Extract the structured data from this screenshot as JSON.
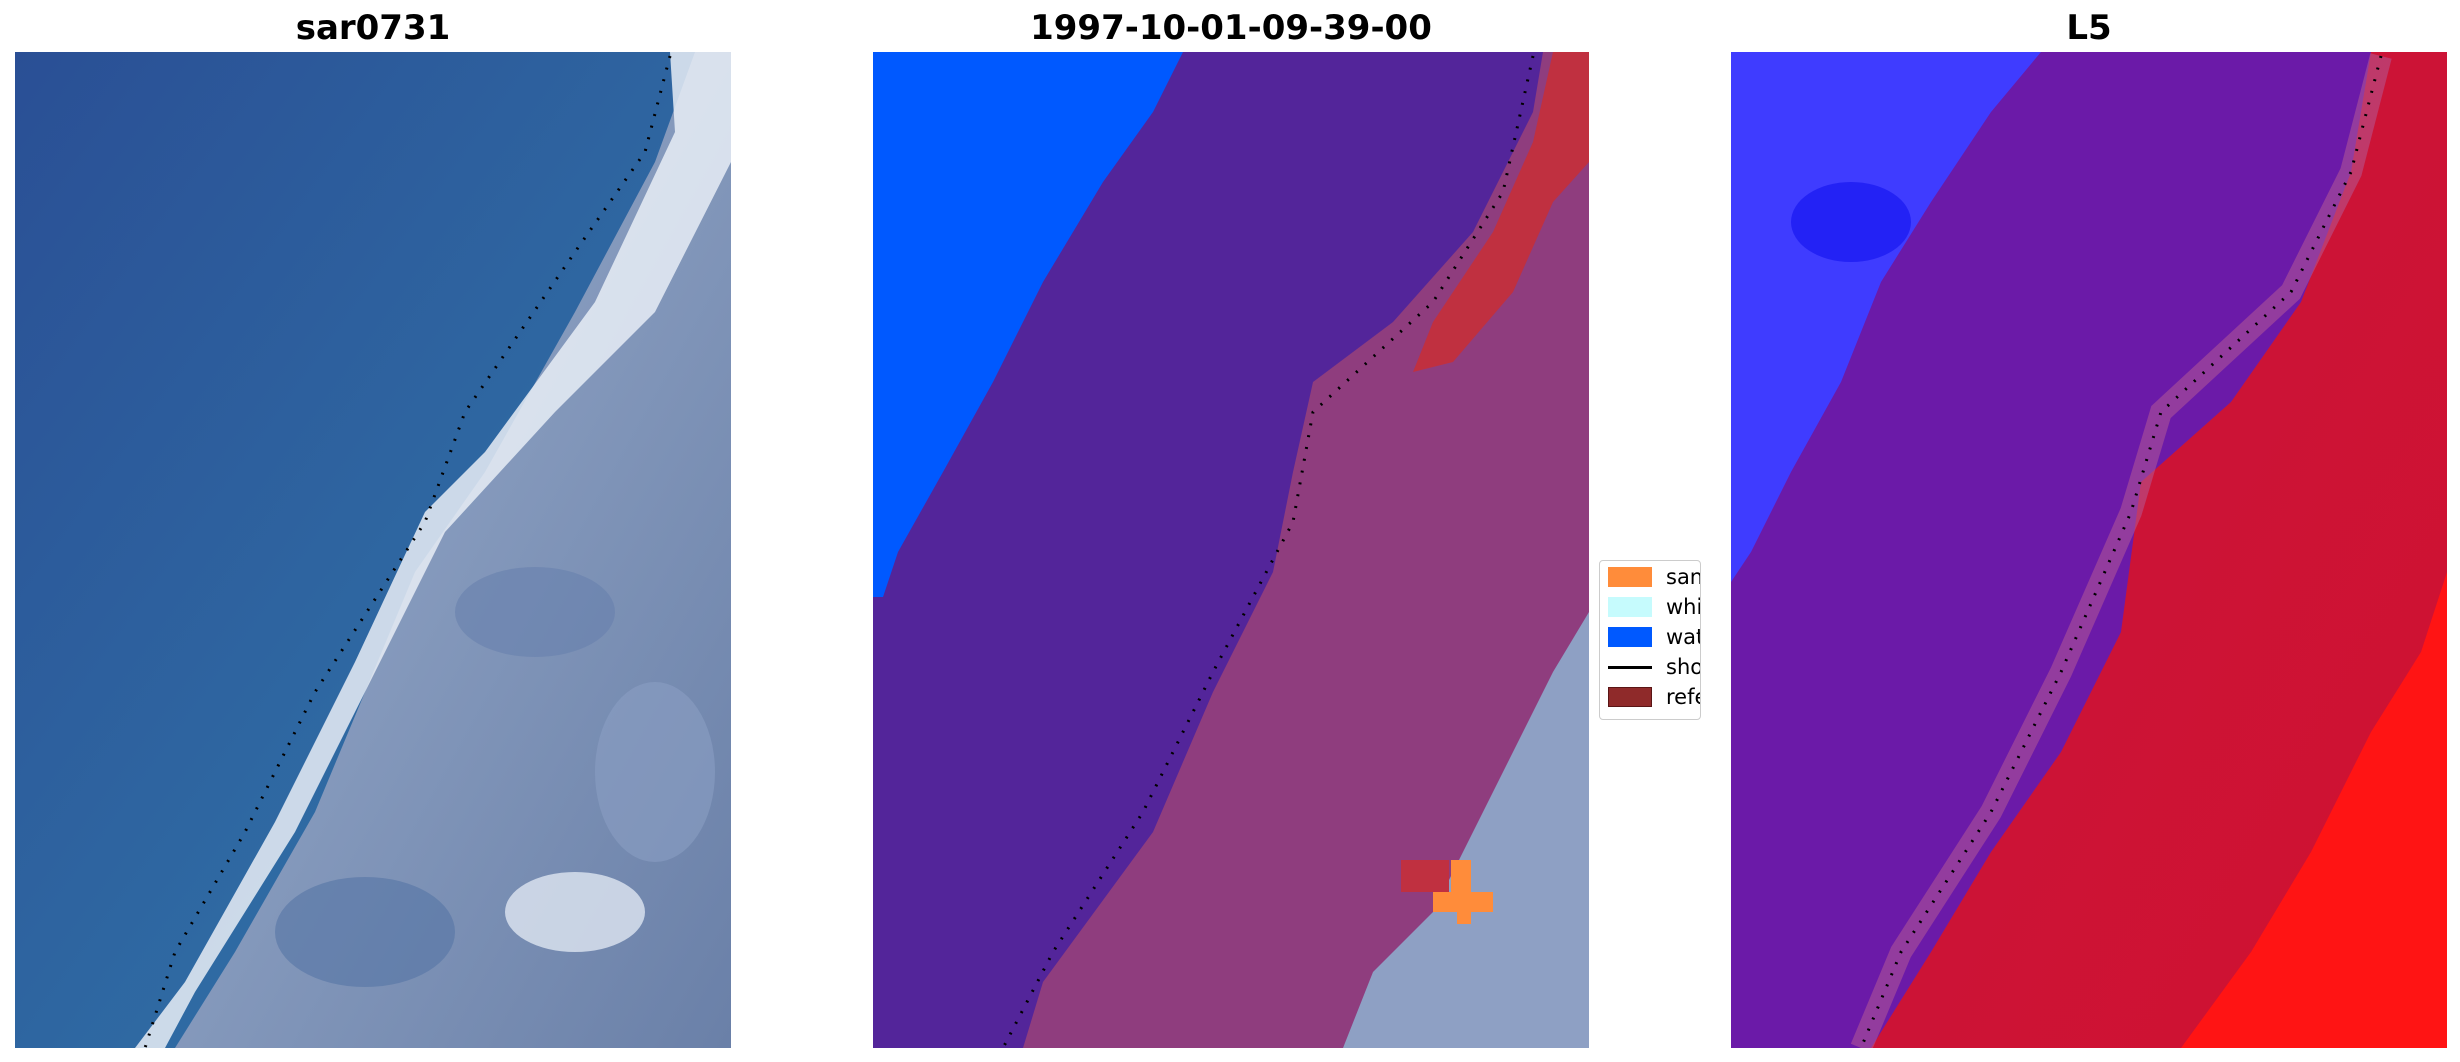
{
  "panels": [
    {
      "title": "sar0731",
      "kind": "rgb"
    },
    {
      "title": "1997-10-01-09-39-00",
      "kind": "classified"
    },
    {
      "title": "L5",
      "kind": "index"
    }
  ],
  "legend": {
    "items": [
      {
        "label": "sand",
        "color": "#ff8c3a",
        "kind": "patch"
      },
      {
        "label": "whitewater",
        "color": "#c6fbfd",
        "kind": "patch"
      },
      {
        "label": "water",
        "color": "#0059ff",
        "kind": "patch"
      },
      {
        "label": "shoreline",
        "color": "#000000",
        "kind": "line"
      },
      {
        "label": "reference",
        "color": "#8f2a2a",
        "kind": "patch"
      }
    ]
  },
  "colors": {
    "ocean": "#2f6aa3",
    "ocean_dark": "#2a4f95",
    "beach_white": "#e8eef8",
    "land_grey": "#6f86ad",
    "water_class": "#0059ff",
    "purple_overlay": "#53259a",
    "magenta_overlay": "#8f3d7e",
    "red_overlay": "#c03040",
    "index_blue": "#3f3cff",
    "index_purple": "#6b1aa8",
    "index_red": "#c8143c",
    "index_bright_red": "#ff1414"
  }
}
